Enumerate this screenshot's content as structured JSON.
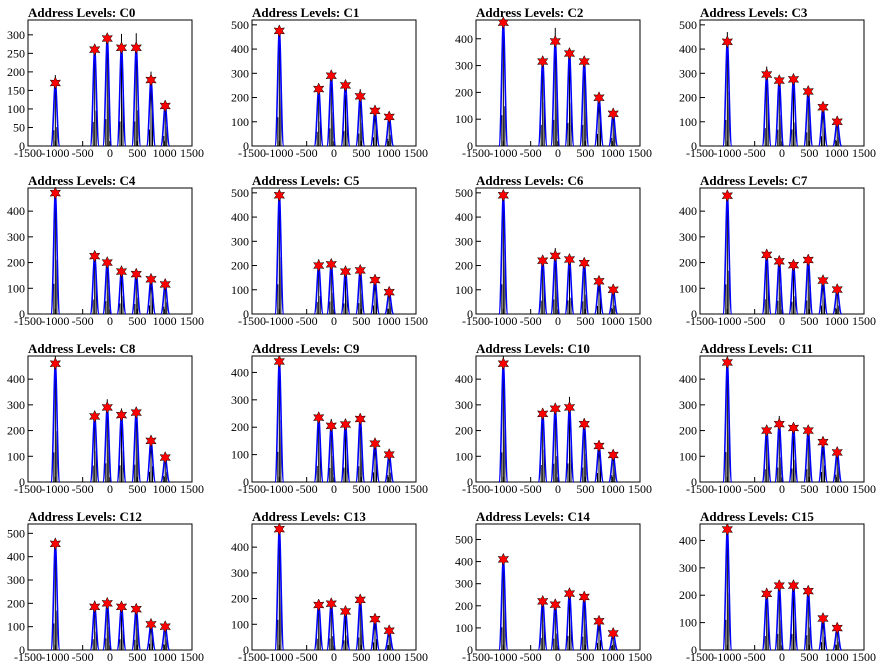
{
  "colors": {
    "histogram": "#000000",
    "fit": "#0000ff",
    "marker": "#ff0000",
    "marker_stroke": "#000000"
  },
  "chart_data": [
    {
      "type": "histogram",
      "title": "Address Levels: C0",
      "xlim": [
        -1500,
        1500
      ],
      "ylim": [
        0,
        340
      ],
      "xticks": [
        -1500,
        -1000,
        -500,
        0,
        500,
        1000,
        1500
      ],
      "yticks": [
        0,
        50,
        100,
        150,
        200,
        250,
        300
      ],
      "peaks": [
        {
          "x": -1000,
          "y": 170
        },
        {
          "x": -280,
          "y": 260
        },
        {
          "x": -50,
          "y": 290
        },
        {
          "x": 210,
          "y": 265
        },
        {
          "x": 480,
          "y": 265
        },
        {
          "x": 750,
          "y": 178
        },
        {
          "x": 1010,
          "y": 108
        }
      ]
    },
    {
      "type": "histogram",
      "title": "Address Levels: C1",
      "xlim": [
        -1500,
        1500
      ],
      "ylim": [
        0,
        520
      ],
      "xticks": [
        -1500,
        -1000,
        -500,
        0,
        500,
        1000,
        1500
      ],
      "yticks": [
        0,
        100,
        200,
        300,
        400,
        500
      ],
      "peaks": [
        {
          "x": -1000,
          "y": 475
        },
        {
          "x": -280,
          "y": 235
        },
        {
          "x": -50,
          "y": 290
        },
        {
          "x": 210,
          "y": 250
        },
        {
          "x": 480,
          "y": 205
        },
        {
          "x": 750,
          "y": 145
        },
        {
          "x": 1010,
          "y": 120
        }
      ]
    },
    {
      "type": "histogram",
      "title": "Address Levels: C2",
      "xlim": [
        -1500,
        1500
      ],
      "ylim": [
        0,
        470
      ],
      "xticks": [
        -1500,
        -1000,
        -500,
        0,
        500,
        1000,
        1500
      ],
      "yticks": [
        0,
        100,
        200,
        300,
        400
      ],
      "peaks": [
        {
          "x": -1000,
          "y": 460
        },
        {
          "x": -280,
          "y": 315
        },
        {
          "x": -50,
          "y": 390
        },
        {
          "x": 210,
          "y": 345
        },
        {
          "x": 480,
          "y": 315
        },
        {
          "x": 750,
          "y": 180
        },
        {
          "x": 1010,
          "y": 120
        }
      ]
    },
    {
      "type": "histogram",
      "title": "Address Levels: C3",
      "xlim": [
        -1500,
        1500
      ],
      "ylim": [
        0,
        520
      ],
      "xticks": [
        -1500,
        -1000,
        -500,
        0,
        500,
        1000,
        1500
      ],
      "yticks": [
        0,
        100,
        200,
        300,
        400,
        500
      ],
      "peaks": [
        {
          "x": -1000,
          "y": 430
        },
        {
          "x": -280,
          "y": 295
        },
        {
          "x": -50,
          "y": 270
        },
        {
          "x": 210,
          "y": 275
        },
        {
          "x": 480,
          "y": 225
        },
        {
          "x": 750,
          "y": 160
        },
        {
          "x": 1010,
          "y": 100
        }
      ]
    },
    {
      "type": "histogram",
      "title": "Address Levels: C4",
      "xlim": [
        -1500,
        1500
      ],
      "ylim": [
        0,
        490
      ],
      "xticks": [
        -1500,
        -1000,
        -500,
        0,
        500,
        1000,
        1500
      ],
      "yticks": [
        0,
        100,
        200,
        300,
        400
      ],
      "peaks": [
        {
          "x": -1000,
          "y": 470
        },
        {
          "x": -280,
          "y": 225
        },
        {
          "x": -50,
          "y": 200
        },
        {
          "x": 210,
          "y": 165
        },
        {
          "x": 480,
          "y": 155
        },
        {
          "x": 750,
          "y": 135
        },
        {
          "x": 1010,
          "y": 115
        }
      ]
    },
    {
      "type": "histogram",
      "title": "Address Levels: C5",
      "xlim": [
        -1500,
        1500
      ],
      "ylim": [
        0,
        520
      ],
      "xticks": [
        -1500,
        -1000,
        -500,
        0,
        500,
        1000,
        1500
      ],
      "yticks": [
        0,
        100,
        200,
        300,
        400,
        500
      ],
      "peaks": [
        {
          "x": -1000,
          "y": 490
        },
        {
          "x": -280,
          "y": 200
        },
        {
          "x": -50,
          "y": 205
        },
        {
          "x": 210,
          "y": 175
        },
        {
          "x": 480,
          "y": 180
        },
        {
          "x": 750,
          "y": 140
        },
        {
          "x": 1010,
          "y": 90
        }
      ]
    },
    {
      "type": "histogram",
      "title": "Address Levels: C6",
      "xlim": [
        -1500,
        1500
      ],
      "ylim": [
        0,
        520
      ],
      "xticks": [
        -1500,
        -1000,
        -500,
        0,
        500,
        1000,
        1500
      ],
      "yticks": [
        0,
        100,
        200,
        300,
        400,
        500
      ],
      "peaks": [
        {
          "x": -1000,
          "y": 490
        },
        {
          "x": -280,
          "y": 220
        },
        {
          "x": -50,
          "y": 240
        },
        {
          "x": 210,
          "y": 225
        },
        {
          "x": 480,
          "y": 210
        },
        {
          "x": 750,
          "y": 135
        },
        {
          "x": 1010,
          "y": 100
        }
      ]
    },
    {
      "type": "histogram",
      "title": "Address Levels: C7",
      "xlim": [
        -1500,
        1500
      ],
      "ylim": [
        0,
        490
      ],
      "xticks": [
        -1500,
        -1000,
        -500,
        0,
        500,
        1000,
        1500
      ],
      "yticks": [
        0,
        100,
        200,
        300,
        400
      ],
      "peaks": [
        {
          "x": -1000,
          "y": 460
        },
        {
          "x": -280,
          "y": 230
        },
        {
          "x": -50,
          "y": 205
        },
        {
          "x": 210,
          "y": 190
        },
        {
          "x": 480,
          "y": 210
        },
        {
          "x": 750,
          "y": 130
        },
        {
          "x": 1010,
          "y": 95
        }
      ]
    },
    {
      "type": "histogram",
      "title": "Address Levels: C8",
      "xlim": [
        -1500,
        1500
      ],
      "ylim": [
        0,
        490
      ],
      "xticks": [
        -1500,
        -1000,
        -500,
        0,
        500,
        1000,
        1500
      ],
      "yticks": [
        0,
        100,
        200,
        300,
        400
      ],
      "peaks": [
        {
          "x": -1000,
          "y": 460
        },
        {
          "x": -280,
          "y": 255
        },
        {
          "x": -50,
          "y": 290
        },
        {
          "x": 210,
          "y": 260
        },
        {
          "x": 480,
          "y": 270
        },
        {
          "x": 750,
          "y": 160
        },
        {
          "x": 1010,
          "y": 95
        }
      ]
    },
    {
      "type": "histogram",
      "title": "Address Levels: C9",
      "xlim": [
        -1500,
        1500
      ],
      "ylim": [
        0,
        460
      ],
      "xticks": [
        -1500,
        -1000,
        -500,
        0,
        500,
        1000,
        1500
      ],
      "yticks": [
        0,
        100,
        200,
        300,
        400
      ],
      "peaks": [
        {
          "x": -1000,
          "y": 440
        },
        {
          "x": -280,
          "y": 235
        },
        {
          "x": -50,
          "y": 205
        },
        {
          "x": 210,
          "y": 210
        },
        {
          "x": 480,
          "y": 230
        },
        {
          "x": 750,
          "y": 140
        },
        {
          "x": 1010,
          "y": 100
        }
      ]
    },
    {
      "type": "histogram",
      "title": "Address Levels: C10",
      "xlim": [
        -1500,
        1500
      ],
      "ylim": [
        0,
        490
      ],
      "xticks": [
        -1500,
        -1000,
        -500,
        0,
        500,
        1000,
        1500
      ],
      "yticks": [
        0,
        100,
        200,
        300,
        400
      ],
      "peaks": [
        {
          "x": -1000,
          "y": 460
        },
        {
          "x": -280,
          "y": 265
        },
        {
          "x": -50,
          "y": 285
        },
        {
          "x": 210,
          "y": 290
        },
        {
          "x": 480,
          "y": 225
        },
        {
          "x": 750,
          "y": 140
        },
        {
          "x": 1010,
          "y": 105
        }
      ]
    },
    {
      "type": "histogram",
      "title": "Address Levels: C11",
      "xlim": [
        -1500,
        1500
      ],
      "ylim": [
        0,
        490
      ],
      "xticks": [
        -1500,
        -1000,
        -500,
        0,
        500,
        1000,
        1500
      ],
      "yticks": [
        0,
        100,
        200,
        300,
        400
      ],
      "peaks": [
        {
          "x": -1000,
          "y": 465
        },
        {
          "x": -280,
          "y": 200
        },
        {
          "x": -50,
          "y": 225
        },
        {
          "x": 210,
          "y": 210
        },
        {
          "x": 480,
          "y": 200
        },
        {
          "x": 750,
          "y": 155
        },
        {
          "x": 1010,
          "y": 115
        }
      ]
    },
    {
      "type": "histogram",
      "title": "Address Levels: C12",
      "xlim": [
        -1500,
        1500
      ],
      "ylim": [
        0,
        540
      ],
      "xticks": [
        -1500,
        -1000,
        -500,
        0,
        500,
        1000,
        1500
      ],
      "yticks": [
        0,
        100,
        200,
        300,
        400,
        500
      ],
      "peaks": [
        {
          "x": -1000,
          "y": 455
        },
        {
          "x": -280,
          "y": 185
        },
        {
          "x": -50,
          "y": 200
        },
        {
          "x": 210,
          "y": 185
        },
        {
          "x": 480,
          "y": 175
        },
        {
          "x": 750,
          "y": 110
        },
        {
          "x": 1010,
          "y": 100
        }
      ]
    },
    {
      "type": "histogram",
      "title": "Address Levels: C13",
      "xlim": [
        -1500,
        1500
      ],
      "ylim": [
        0,
        490
      ],
      "xticks": [
        -1500,
        -1000,
        -500,
        0,
        500,
        1000,
        1500
      ],
      "yticks": [
        0,
        100,
        200,
        300,
        400
      ],
      "peaks": [
        {
          "x": -1000,
          "y": 470
        },
        {
          "x": -280,
          "y": 175
        },
        {
          "x": -50,
          "y": 180
        },
        {
          "x": 210,
          "y": 150
        },
        {
          "x": 480,
          "y": 195
        },
        {
          "x": 750,
          "y": 120
        },
        {
          "x": 1010,
          "y": 75
        }
      ]
    },
    {
      "type": "histogram",
      "title": "Address Levels: C14",
      "xlim": [
        -1500,
        1500
      ],
      "ylim": [
        0,
        570
      ],
      "xticks": [
        -1500,
        -1000,
        -500,
        0,
        500,
        1000,
        1500
      ],
      "yticks": [
        0,
        100,
        200,
        300,
        400,
        500
      ],
      "peaks": [
        {
          "x": -1000,
          "y": 410
        },
        {
          "x": -280,
          "y": 220
        },
        {
          "x": -50,
          "y": 205
        },
        {
          "x": 210,
          "y": 255
        },
        {
          "x": 480,
          "y": 240
        },
        {
          "x": 750,
          "y": 130
        },
        {
          "x": 1010,
          "y": 75
        }
      ]
    },
    {
      "type": "histogram",
      "title": "Address Levels: C15",
      "xlim": [
        -1500,
        1500
      ],
      "ylim": [
        0,
        460
      ],
      "xticks": [
        -1500,
        -1000,
        -500,
        0,
        500,
        1000,
        1500
      ],
      "yticks": [
        0,
        100,
        200,
        300,
        400
      ],
      "peaks": [
        {
          "x": -1000,
          "y": 440
        },
        {
          "x": -280,
          "y": 205
        },
        {
          "x": -50,
          "y": 235
        },
        {
          "x": 210,
          "y": 235
        },
        {
          "x": 480,
          "y": 215
        },
        {
          "x": 750,
          "y": 115
        },
        {
          "x": 1010,
          "y": 80
        }
      ]
    }
  ]
}
